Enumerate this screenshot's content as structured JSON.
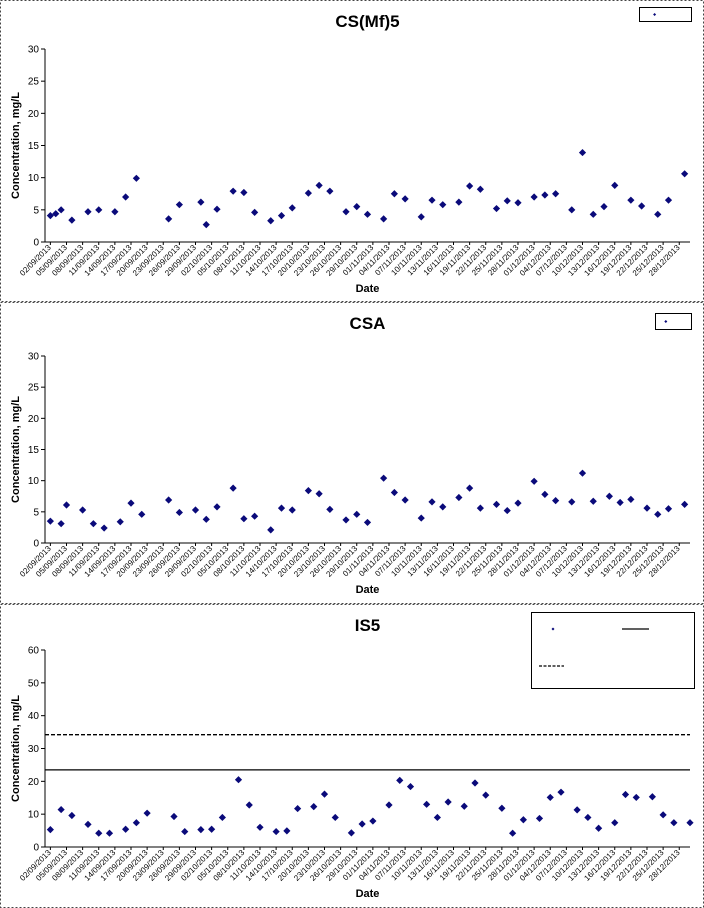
{
  "colors": {
    "marker": "#0a0a7a",
    "line": "#000000",
    "border": "#444444"
  },
  "chart_data": [
    {
      "type": "scatter",
      "title": "CS(Mf)5",
      "xlabel": "Date",
      "ylabel": "Concentration, mg/L",
      "ylim": [
        0,
        30
      ],
      "yticks": [
        0,
        5,
        10,
        15,
        20,
        25,
        30
      ],
      "grid": false,
      "legend": {
        "placement": "top-right",
        "entries": [
          {
            "label": "",
            "kind": "marker"
          }
        ]
      },
      "xticks": [
        "02/09/2013",
        "05/09/2013",
        "08/09/2013",
        "11/09/2013",
        "14/09/2013",
        "17/09/2013",
        "20/09/2013",
        "23/09/2013",
        "26/09/2013",
        "29/09/2013",
        "02/10/2013",
        "05/10/2013",
        "08/10/2013",
        "11/10/2013",
        "14/10/2013",
        "17/10/2013",
        "20/10/2013",
        "23/10/2013",
        "26/10/2013",
        "29/10/2013",
        "01/11/2013",
        "04/11/2013",
        "07/11/2013",
        "10/11/2013",
        "13/11/2013",
        "16/11/2013",
        "19/11/2013",
        "22/11/2013",
        "25/11/2013",
        "28/11/2013",
        "01/12/2013",
        "04/12/2013",
        "07/12/2013",
        "10/12/2013",
        "13/12/2013",
        "16/12/2013",
        "19/12/2013",
        "22/12/2013",
        "25/12/2013",
        "28/12/2013"
      ],
      "x": [
        "2013-09-02",
        "2013-09-03",
        "2013-09-04",
        "2013-09-06",
        "2013-09-09",
        "2013-09-11",
        "2013-09-14",
        "2013-09-16",
        "2013-09-18",
        "2013-09-24",
        "2013-09-26",
        "2013-09-30",
        "2013-10-01",
        "2013-10-03",
        "2013-10-06",
        "2013-10-08",
        "2013-10-10",
        "2013-10-13",
        "2013-10-15",
        "2013-10-17",
        "2013-10-20",
        "2013-10-22",
        "2013-10-24",
        "2013-10-27",
        "2013-10-29",
        "2013-10-31",
        "2013-11-03",
        "2013-11-05",
        "2013-11-07",
        "2013-11-10",
        "2013-11-12",
        "2013-11-14",
        "2013-11-17",
        "2013-11-19",
        "2013-11-21",
        "2013-11-24",
        "2013-11-26",
        "2013-11-28",
        "2013-12-01",
        "2013-12-03",
        "2013-12-05",
        "2013-12-08",
        "2013-12-10",
        "2013-12-12",
        "2013-12-14",
        "2013-12-16",
        "2013-12-19",
        "2013-12-21",
        "2013-12-24",
        "2013-12-26",
        "2013-12-29"
      ],
      "y": [
        4.1,
        4.4,
        5.0,
        3.4,
        4.7,
        5.0,
        4.7,
        7.0,
        9.9,
        3.6,
        5.8,
        6.2,
        2.7,
        5.1,
        7.9,
        7.7,
        4.6,
        3.3,
        4.1,
        5.3,
        7.6,
        8.8,
        7.9,
        4.7,
        5.5,
        4.3,
        3.6,
        7.5,
        6.7,
        3.9,
        6.5,
        5.8,
        6.2,
        8.7,
        8.2,
        5.2,
        6.4,
        6.1,
        7.0,
        7.3,
        7.5,
        5.0,
        13.9,
        4.3,
        5.5,
        8.8,
        6.5,
        5.6,
        4.3,
        6.5,
        10.6
      ]
    },
    {
      "type": "scatter",
      "title": "CSA",
      "xlabel": "Date",
      "ylabel": "Concentration, mg/L",
      "ylim": [
        0,
        30
      ],
      "yticks": [
        0,
        5,
        10,
        15,
        20,
        25,
        30
      ],
      "grid": false,
      "legend": {
        "placement": "top-right",
        "entries": [
          {
            "label": "",
            "kind": "marker"
          }
        ]
      },
      "xticks": [
        "02/09/2013",
        "05/09/2013",
        "08/09/2013",
        "11/09/2013",
        "14/09/2013",
        "17/09/2013",
        "20/09/2013",
        "23/09/2013",
        "26/09/2013",
        "29/09/2013",
        "02/10/2013",
        "05/10/2013",
        "08/10/2013",
        "11/10/2013",
        "14/10/2013",
        "17/10/2013",
        "20/10/2013",
        "23/10/2013",
        "26/10/2013",
        "29/10/2013",
        "01/11/2013",
        "04/11/2013",
        "07/11/2013",
        "10/11/2013",
        "13/11/2013",
        "16/11/2013",
        "19/11/2013",
        "22/11/2013",
        "25/11/2013",
        "28/11/2013",
        "01/12/2013",
        "04/12/2013",
        "07/12/2013",
        "10/12/2013",
        "13/12/2013",
        "16/12/2013",
        "19/12/2013",
        "22/12/2013",
        "25/12/2013",
        "28/12/2013"
      ],
      "x": [
        "2013-09-02",
        "2013-09-04",
        "2013-09-05",
        "2013-09-08",
        "2013-09-10",
        "2013-09-12",
        "2013-09-15",
        "2013-09-17",
        "2013-09-19",
        "2013-09-24",
        "2013-09-26",
        "2013-09-29",
        "2013-10-01",
        "2013-10-03",
        "2013-10-06",
        "2013-10-08",
        "2013-10-10",
        "2013-10-13",
        "2013-10-15",
        "2013-10-17",
        "2013-10-20",
        "2013-10-22",
        "2013-10-24",
        "2013-10-27",
        "2013-10-29",
        "2013-10-31",
        "2013-11-03",
        "2013-11-05",
        "2013-11-07",
        "2013-11-10",
        "2013-11-12",
        "2013-11-14",
        "2013-11-17",
        "2013-11-19",
        "2013-11-21",
        "2013-11-24",
        "2013-11-26",
        "2013-11-28",
        "2013-12-01",
        "2013-12-03",
        "2013-12-05",
        "2013-12-08",
        "2013-12-10",
        "2013-12-12",
        "2013-12-15",
        "2013-12-17",
        "2013-12-19",
        "2013-12-22",
        "2013-12-24",
        "2013-12-26",
        "2013-12-29"
      ],
      "y": [
        3.5,
        3.1,
        6.1,
        5.3,
        3.1,
        2.4,
        3.4,
        6.4,
        4.6,
        6.9,
        4.9,
        5.3,
        3.8,
        5.8,
        8.8,
        3.9,
        4.3,
        2.1,
        5.6,
        5.3,
        8.4,
        7.9,
        5.4,
        3.7,
        4.6,
        3.3,
        10.4,
        8.1,
        6.9,
        4.0,
        6.6,
        5.8,
        7.3,
        8.8,
        5.6,
        6.2,
        5.2,
        6.4,
        9.9,
        7.8,
        6.8,
        6.6,
        11.2,
        6.7,
        7.5,
        6.5,
        7.0,
        5.6,
        4.6,
        5.5,
        6.2
      ]
    },
    {
      "type": "scatter",
      "title": "IS5",
      "xlabel": "Date",
      "ylabel": "Concentration, mg/L",
      "ylim": [
        0,
        60
      ],
      "yticks": [
        0,
        10,
        20,
        30,
        40,
        50,
        60
      ],
      "grid": false,
      "legend": {
        "placement": "top-right",
        "entries": [
          {
            "label": "",
            "kind": "marker"
          },
          {
            "label": "",
            "kind": "solid-line"
          },
          {
            "label": "",
            "kind": "dashed-line"
          }
        ]
      },
      "reference_lines": [
        {
          "style": "solid",
          "y": 23.5
        },
        {
          "style": "dashed",
          "y": 34.2
        }
      ],
      "xticks": [
        "02/09/2013",
        "05/09/2013",
        "08/09/2013",
        "11/09/2013",
        "14/09/2013",
        "17/09/2013",
        "20/09/2013",
        "23/09/2013",
        "26/09/2013",
        "29/09/2013",
        "02/10/2013",
        "05/10/2013",
        "08/10/2013",
        "11/10/2013",
        "14/10/2013",
        "17/10/2013",
        "20/10/2013",
        "23/10/2013",
        "26/10/2013",
        "29/10/2013",
        "01/11/2013",
        "04/11/2013",
        "07/11/2013",
        "10/11/2013",
        "13/11/2013",
        "16/11/2013",
        "19/11/2013",
        "22/11/2013",
        "25/11/2013",
        "28/11/2013",
        "01/12/2013",
        "04/12/2013",
        "07/12/2013",
        "10/12/2013",
        "13/12/2013",
        "16/12/2013",
        "19/12/2013",
        "22/12/2013",
        "25/12/2013",
        "28/12/2013"
      ],
      "x": [
        "2013-09-02",
        "2013-09-04",
        "2013-09-06",
        "2013-09-09",
        "2013-09-11",
        "2013-09-13",
        "2013-09-16",
        "2013-09-18",
        "2013-09-20",
        "2013-09-25",
        "2013-09-27",
        "2013-09-30",
        "2013-10-02",
        "2013-10-04",
        "2013-10-07",
        "2013-10-09",
        "2013-10-11",
        "2013-10-14",
        "2013-10-16",
        "2013-10-18",
        "2013-10-21",
        "2013-10-23",
        "2013-10-25",
        "2013-10-28",
        "2013-10-30",
        "2013-11-01",
        "2013-11-04",
        "2013-11-06",
        "2013-11-08",
        "2013-11-11",
        "2013-11-13",
        "2013-11-15",
        "2013-11-18",
        "2013-11-20",
        "2013-11-22",
        "2013-11-25",
        "2013-11-27",
        "2013-11-29",
        "2013-12-02",
        "2013-12-04",
        "2013-12-06",
        "2013-12-09",
        "2013-12-11",
        "2013-12-13",
        "2013-12-16",
        "2013-12-18",
        "2013-12-20",
        "2013-12-23",
        "2013-12-25",
        "2013-12-27",
        "2013-12-30"
      ],
      "y": [
        5.3,
        11.4,
        9.6,
        6.9,
        4.2,
        4.2,
        5.4,
        7.4,
        10.3,
        9.3,
        4.7,
        5.3,
        5.4,
        9.0,
        20.5,
        12.8,
        6.0,
        4.7,
        4.9,
        11.7,
        12.3,
        16.1,
        9.0,
        4.3,
        7.0,
        7.9,
        12.8,
        20.3,
        18.4,
        13.0,
        9.0,
        13.7,
        12.4,
        19.5,
        15.8,
        11.8,
        4.2,
        8.3,
        8.7,
        15.1,
        16.7,
        11.3,
        9.0,
        5.7,
        7.4,
        16.0,
        15.1,
        15.3,
        9.8,
        7.4,
        7.4
      ]
    }
  ]
}
